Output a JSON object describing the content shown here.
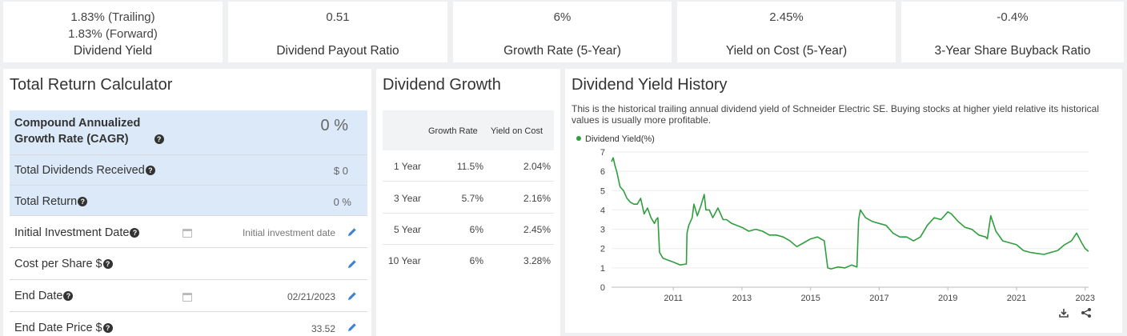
{
  "stats": {
    "dividend_yield": {
      "trailing": "1.83% (Trailing)",
      "forward": "1.83% (Forward)",
      "label": "Dividend Yield"
    },
    "payout_ratio": {
      "value": "0.51",
      "label": "Dividend Payout Ratio"
    },
    "growth_rate": {
      "value": "6%",
      "label": "Growth Rate (5-Year)"
    },
    "yield_on_cost": {
      "value": "2.45%",
      "label": "Yield on Cost (5-Year)"
    },
    "buyback": {
      "value": "-0.4%",
      "label": "3-Year Share Buyback Ratio"
    }
  },
  "calculator": {
    "title": "Total Return Calculator",
    "cagr": {
      "label_line1": "Compound Annualized",
      "label_line2": "Growth Rate (CAGR)",
      "value": "0 %"
    },
    "total_dividends": {
      "label": "Total Dividends Received",
      "value": "$ 0"
    },
    "total_return": {
      "label": "Total Return",
      "value": "0 %"
    },
    "initial_date": {
      "label": "Initial Investment Date",
      "placeholder": "Initial investment date"
    },
    "cost_per_share": {
      "label": "Cost per Share $",
      "value": ""
    },
    "end_date": {
      "label": "End Date",
      "value": "02/21/2023"
    },
    "end_price": {
      "label": "End Date Price $",
      "value": "33.52"
    },
    "help_glyph": "?"
  },
  "dividend_growth": {
    "title": "Dividend Growth",
    "columns": [
      "",
      "Growth Rate",
      "Yield on Cost"
    ],
    "rows": [
      {
        "period": "1 Year",
        "growth": "11.5%",
        "yoc": "2.04%"
      },
      {
        "period": "3 Year",
        "growth": "5.7%",
        "yoc": "2.16%"
      },
      {
        "period": "5 Year",
        "growth": "6%",
        "yoc": "2.45%"
      },
      {
        "period": "10 Year",
        "growth": "6%",
        "yoc": "3.28%"
      }
    ]
  },
  "yield_history": {
    "title": "Dividend Yield History",
    "description": "This is the historical trailing annual dividend yield of Schneider Electric SE. Buying stocks at higher yield relative its historical values is usually more profitable.",
    "legend": "Dividend Yield(%)",
    "icons": [
      "download-icon",
      "share-icon"
    ]
  },
  "colors": {
    "line": "#2e9e3e",
    "highlight": "#dce9f8",
    "pencil": "#3b82d6"
  },
  "chart_data": {
    "type": "line",
    "title": "Dividend Yield History",
    "ylabel": "",
    "xlabel": "",
    "ylim": [
      0,
      7
    ],
    "y_ticks": [
      0,
      1,
      2,
      3,
      4,
      5,
      6,
      7
    ],
    "x_ticks": [
      "2011",
      "2013",
      "2015",
      "2017",
      "2019",
      "2021",
      "2023"
    ],
    "grid": "horizontal",
    "legend_position": "top-left",
    "series": [
      {
        "name": "Dividend Yield(%)",
        "x": [
          2009.2,
          2009.25,
          2009.3,
          2009.35,
          2009.45,
          2009.55,
          2009.65,
          2009.75,
          2009.85,
          2009.95,
          2010.05,
          2010.15,
          2010.25,
          2010.35,
          2010.45,
          2010.5,
          2010.55,
          2010.6,
          2010.7,
          2010.85,
          2011.0,
          2011.2,
          2011.38,
          2011.4,
          2011.45,
          2011.55,
          2011.6,
          2011.7,
          2011.8,
          2011.9,
          2011.95,
          2012.05,
          2012.15,
          2012.3,
          2012.45,
          2012.55,
          2012.7,
          2012.85,
          2013.0,
          2013.2,
          2013.4,
          2013.6,
          2013.8,
          2014.0,
          2014.2,
          2014.4,
          2014.6,
          2014.8,
          2015.0,
          2015.2,
          2015.4,
          2015.5,
          2015.6,
          2015.8,
          2016.0,
          2016.2,
          2016.35,
          2016.4,
          2016.45,
          2016.6,
          2016.8,
          2017.0,
          2017.2,
          2017.4,
          2017.6,
          2017.8,
          2018.0,
          2018.2,
          2018.4,
          2018.6,
          2018.8,
          2019.0,
          2019.1,
          2019.3,
          2019.5,
          2019.7,
          2019.9,
          2020.1,
          2020.15,
          2020.25,
          2020.4,
          2020.6,
          2020.8,
          2021.0,
          2021.2,
          2021.4,
          2021.6,
          2021.8,
          2022.0,
          2022.2,
          2022.4,
          2022.6,
          2022.75,
          2022.9,
          2023.0,
          2023.1
        ],
        "values": [
          6.5,
          6.7,
          6.3,
          6.0,
          5.2,
          5.0,
          4.6,
          4.4,
          4.3,
          4.3,
          4.6,
          3.8,
          4.1,
          3.6,
          3.3,
          3.5,
          3.6,
          1.8,
          1.5,
          1.4,
          1.3,
          1.15,
          1.2,
          2.8,
          3.2,
          3.6,
          4.3,
          3.7,
          4.2,
          4.8,
          4.0,
          4.0,
          3.6,
          4.1,
          3.5,
          3.5,
          3.3,
          3.2,
          3.1,
          2.9,
          3.0,
          2.9,
          2.7,
          2.7,
          2.6,
          2.4,
          2.1,
          2.3,
          2.5,
          2.6,
          2.4,
          1.0,
          0.95,
          1.05,
          1.0,
          1.15,
          1.05,
          3.5,
          4.0,
          3.6,
          3.4,
          3.3,
          3.2,
          2.8,
          2.6,
          2.6,
          2.4,
          2.6,
          3.2,
          3.6,
          3.5,
          3.9,
          3.8,
          3.4,
          3.1,
          3.0,
          2.7,
          2.6,
          2.5,
          3.7,
          2.9,
          2.4,
          2.3,
          2.2,
          1.9,
          1.8,
          1.75,
          1.7,
          1.8,
          1.9,
          2.2,
          2.4,
          2.8,
          2.3,
          2.0,
          1.85
        ]
      }
    ]
  }
}
